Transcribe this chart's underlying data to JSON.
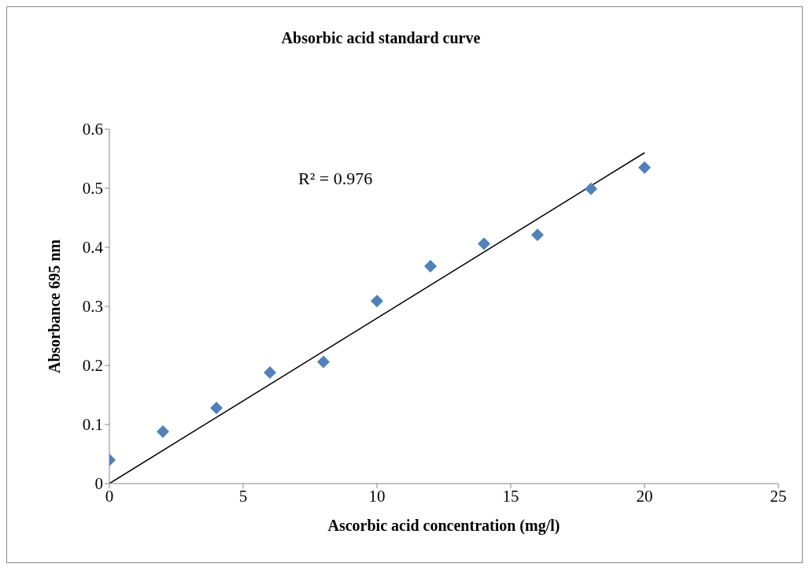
{
  "chart_data": {
    "type": "scatter",
    "title": "Absorbic acid standard curve",
    "xlabel": "Ascorbic acid concentration (mg/l)",
    "ylabel": "Absorbance  695 nm",
    "x": [
      0,
      2,
      4,
      6,
      8,
      10,
      12,
      14,
      16,
      18,
      20
    ],
    "series": [
      {
        "marker": "diamond",
        "color": "#4f81bd",
        "values": [
          0.04,
          0.088,
          0.128,
          0.188,
          0.206,
          0.309,
          0.368,
          0.406,
          0.421,
          0.499,
          0.535
        ]
      },
      {
        "type": "line",
        "marker": "none",
        "color": "#000000",
        "x": [
          0,
          20
        ],
        "values": [
          0,
          0.56
        ]
      }
    ],
    "xlim": [
      0,
      25
    ],
    "xticks": [
      0,
      5,
      10,
      15,
      20,
      25
    ],
    "ylim": [
      0,
      0.6
    ],
    "yticks": [
      0,
      0.1,
      0.2,
      0.3,
      0.4,
      0.5,
      0.6
    ],
    "annotations": [
      "R² = 0.976"
    ]
  }
}
